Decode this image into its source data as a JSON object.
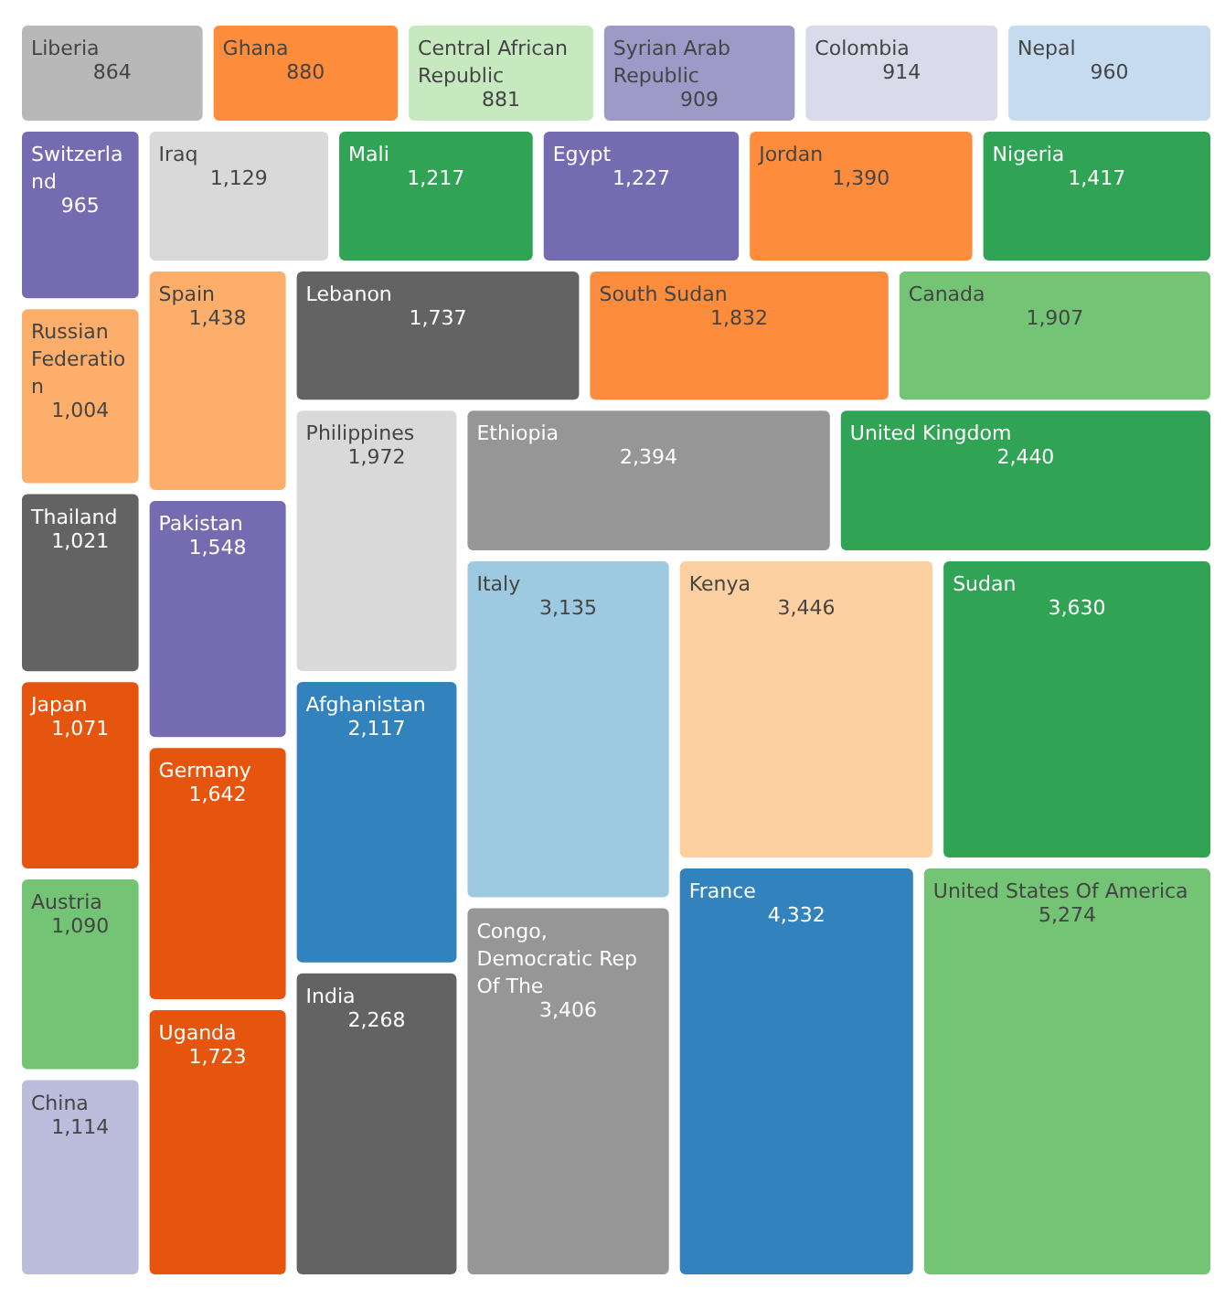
{
  "chart_data": {
    "type": "other",
    "categories": [
      "Liberia",
      "Ghana",
      "Central African Republic",
      "Syrian Arab Republic",
      "Colombia",
      "Nepal",
      "Switzerland",
      "Russian Federation",
      "Thailand",
      "Japan",
      "Austria",
      "China",
      "Iraq",
      "Mali",
      "Egypt",
      "Jordan",
      "Nigeria",
      "Spain",
      "Pakistan",
      "Germany",
      "Uganda",
      "Lebanon",
      "South Sudan",
      "Canada",
      "Philippines",
      "Afghanistan",
      "India",
      "Ethiopia",
      "United Kingdom",
      "Italy",
      "Congo, Democratic Rep Of The",
      "Kenya",
      "Sudan",
      "France",
      "United States Of America"
    ],
    "values": [
      864,
      880,
      881,
      909,
      914,
      960,
      965,
      1004,
      1021,
      1071,
      1090,
      1114,
      1129,
      1217,
      1227,
      1390,
      1417,
      1438,
      1548,
      1642,
      1723,
      1737,
      1832,
      1907,
      1972,
      2117,
      2268,
      2394,
      2440,
      3135,
      3406,
      3446,
      3630,
      4332,
      5274
    ],
    "colors": [
      "#b8b8b8",
      "#fd8d3c",
      "#c7e9c0",
      "#9e9ac8",
      "#dadaeb",
      "#c6dbef",
      "#756bb1",
      "#fdae6b",
      "#636363",
      "#e6550d",
      "#74c476",
      "#bcbddc",
      "#d9d9d9",
      "#31a354",
      "#756bb1",
      "#fd8d3c",
      "#31a354",
      "#fdae6b",
      "#756bb1",
      "#e6550d",
      "#e6550d",
      "#636363",
      "#fd8d3c",
      "#74c476",
      "#d9d9d9",
      "#3182bd",
      "#636363",
      "#969696",
      "#31a354",
      "#9ecae1",
      "#969696",
      "#fdd0a2",
      "#31a354",
      "#3182bd",
      "#74c476"
    ],
    "value_labels": [
      "864",
      "880",
      "881",
      "909",
      "914",
      "960",
      "965",
      "1,004",
      "1,021",
      "1,071",
      "1,090",
      "1,114",
      "1,129",
      "1,217",
      "1,227",
      "1,390",
      "1,417",
      "1,438",
      "1,548",
      "1,642",
      "1,723",
      "1,737",
      "1,832",
      "1,907",
      "1,972",
      "2,117",
      "2,268",
      "2,394",
      "2,440",
      "3,135",
      "3,406",
      "3,446",
      "3,630",
      "4,332",
      "5,274"
    ]
  }
}
